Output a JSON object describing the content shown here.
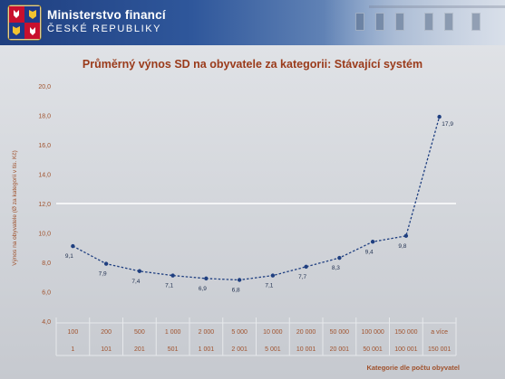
{
  "header": {
    "ministry": "Ministerstvo financí",
    "republic": "ČESKÉ REPUBLIKY",
    "brand_color": "#2a4f93"
  },
  "chart_data": {
    "type": "line",
    "title": "Průměrný výnos SD na obyvatele za kategorii: Stávající systém",
    "ylabel": "Výnos na obyvatele (Ø za kategorii v tis. Kč)",
    "xlabel": "Kategorie dle počtu obyvatel",
    "ylim": [
      4,
      20
    ],
    "yticks": [
      "4,0",
      "6,0",
      "8,0",
      "10,0",
      "12,0",
      "14,0",
      "16,0",
      "18,0",
      "20,0"
    ],
    "ytick_values": [
      4,
      6,
      8,
      10,
      12,
      14,
      16,
      18,
      20
    ],
    "highlight_gridline_value": 12,
    "categories_upper": [
      "100",
      "200",
      "500",
      "1 000",
      "2 000",
      "5 000",
      "10 000",
      "20 000",
      "50 000",
      "100 000",
      "150 000",
      "a více"
    ],
    "categories_lower": [
      "1",
      "101",
      "201",
      "501",
      "1 001",
      "2 001",
      "5 001",
      "10 001",
      "20 001",
      "50 001",
      "100 001",
      "150 001"
    ],
    "series": [
      {
        "values": [
          9.1,
          7.9,
          7.4,
          7.1,
          6.9,
          6.8,
          7.1,
          7.7,
          8.3,
          9.4,
          9.8,
          17.9
        ],
        "labels": [
          "9,1",
          "7,9",
          "7,4",
          "7,1",
          "6,9",
          "6,8",
          "7,1",
          "7,7",
          "8,3",
          "9,4",
          "9,8",
          "17,9"
        ],
        "color": "#1f3f80"
      }
    ],
    "colors": {
      "title": "#9a3a1a",
      "axis_text": "#a0522d",
      "data_label": "#1f2f4f",
      "gridline": "#ffffff"
    }
  }
}
